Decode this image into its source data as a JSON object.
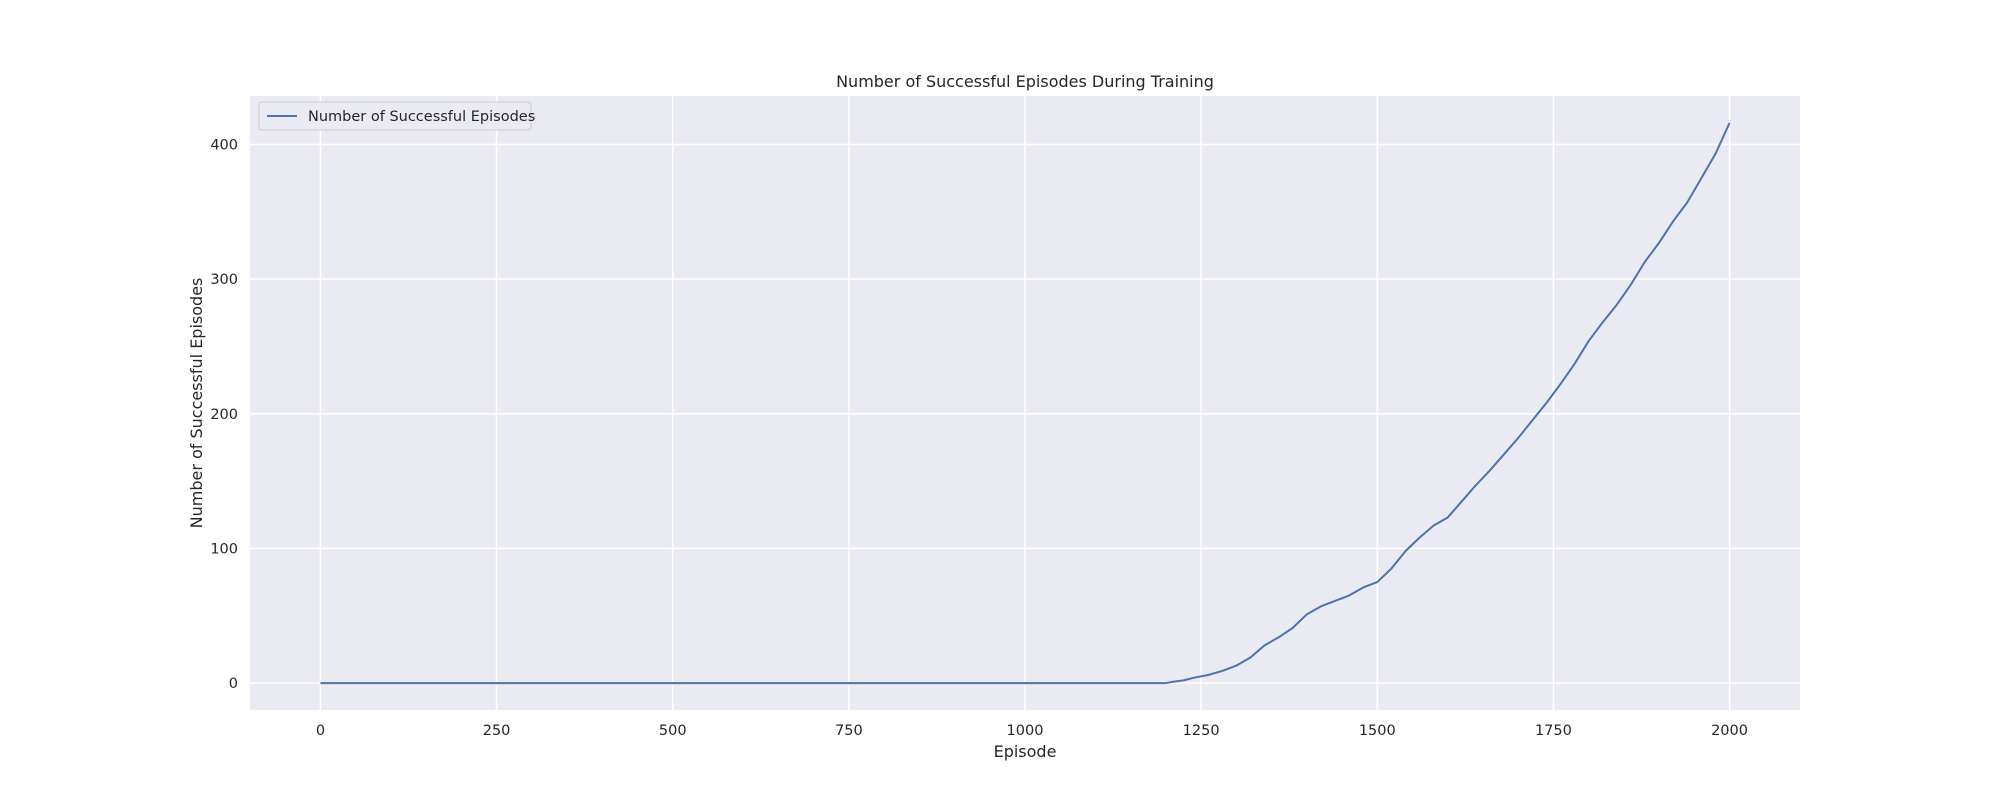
{
  "chart_data": {
    "type": "line",
    "title": "Number of Successful Episodes During Training",
    "xlabel": "Episode",
    "ylabel": "Number of Successful Episodes",
    "xlim": [
      -100,
      2100
    ],
    "ylim": [
      -20,
      436
    ],
    "xticks": [
      0,
      250,
      500,
      750,
      1000,
      1250,
      1500,
      1750,
      2000
    ],
    "yticks": [
      0,
      100,
      200,
      300,
      400
    ],
    "grid": true,
    "legend_position": "top-left",
    "colors": {
      "series": "#4c72b0",
      "background": "#eaeaf2",
      "grid": "#ffffff"
    },
    "series": [
      {
        "name": "Number of Successful Episodes",
        "x": [
          0,
          1200,
          1210,
          1225,
          1240,
          1260,
          1280,
          1300,
          1320,
          1340,
          1360,
          1380,
          1400,
          1420,
          1440,
          1460,
          1480,
          1500,
          1520,
          1540,
          1560,
          1580,
          1600,
          1620,
          1640,
          1660,
          1680,
          1700,
          1720,
          1740,
          1760,
          1780,
          1800,
          1820,
          1840,
          1860,
          1880,
          1900,
          1920,
          1940,
          1960,
          1980,
          2000
        ],
        "y": [
          0,
          0,
          1,
          2,
          4,
          6,
          9,
          13,
          19,
          28,
          34,
          41,
          51,
          57,
          61,
          65,
          71,
          75,
          85,
          98,
          108,
          117,
          123,
          135,
          147,
          158,
          170,
          182,
          195,
          208,
          222,
          237,
          254,
          268,
          281,
          296,
          313,
          327,
          343,
          357,
          375,
          393,
          416
        ]
      }
    ]
  }
}
